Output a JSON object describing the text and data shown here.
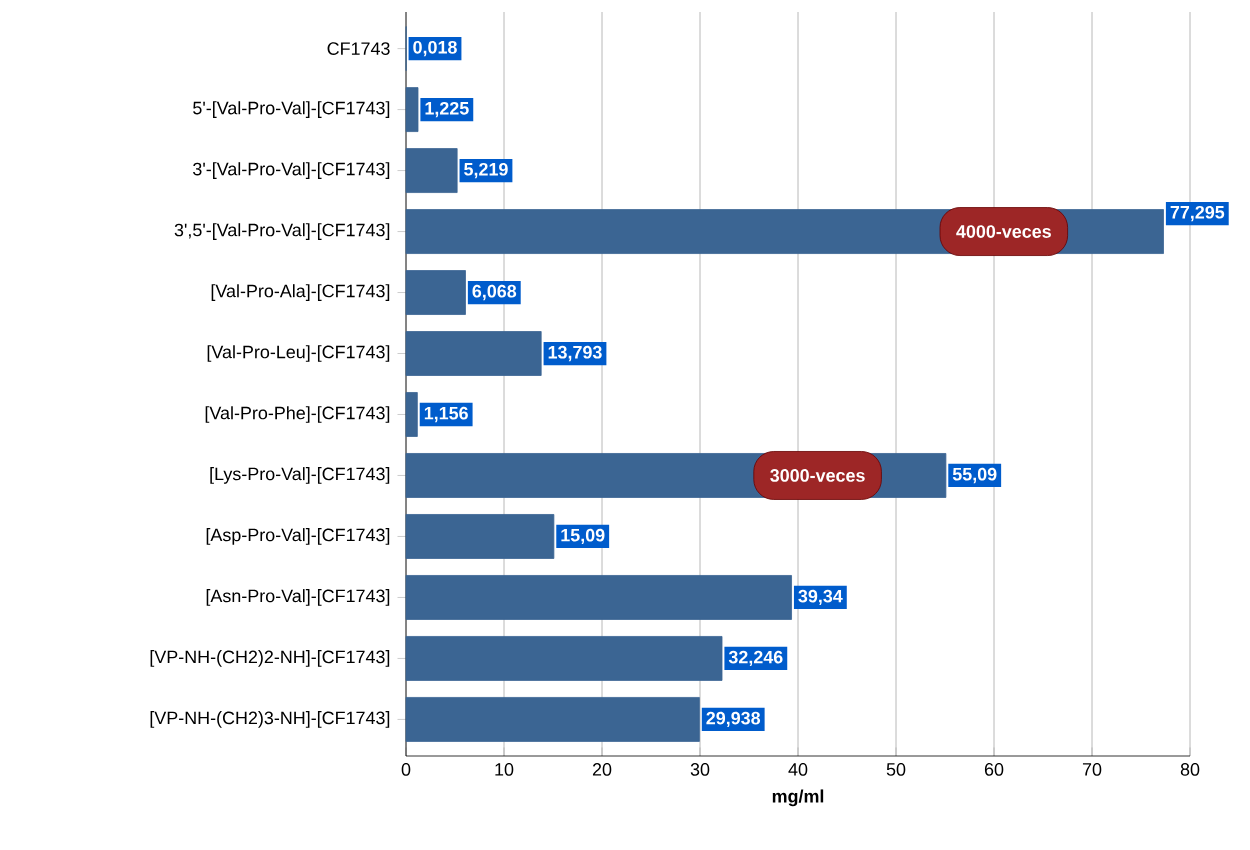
{
  "chart_data": {
    "type": "bar",
    "orientation": "horizontal",
    "xlabel": "mg/ml",
    "categories": [
      "CF1743",
      "5'-[Val-Pro-Val]-[CF1743]",
      "3'-[Val-Pro-Val]-[CF1743]",
      "3',5'-[Val-Pro-Val]-[CF1743]",
      "[Val-Pro-Ala]-[CF1743]",
      "[Val-Pro-Leu]-[CF1743]",
      "[Val-Pro-Phe]-[CF1743]",
      "[Lys-Pro-Val]-[CF1743]",
      "[Asp-Pro-Val]-[CF1743]",
      "[Asn-Pro-Val]-[CF1743]",
      "[VP-NH-(CH2)2-NH]-[CF1743]",
      "[VP-NH-(CH2)3-NH]-[CF1743]"
    ],
    "values": [
      0.018,
      1.225,
      5.219,
      77.295,
      6.068,
      13.793,
      1.156,
      55.09,
      15.09,
      39.34,
      32.246,
      29.938
    ],
    "value_labels": [
      "0,018",
      "1,225",
      "5,219",
      "77,295",
      "6,068",
      "13,793",
      "1,156",
      "55,09",
      "15,09",
      "39,34",
      "32,246",
      "29,938"
    ],
    "color": "#3b6593",
    "xlim": [
      0,
      80
    ],
    "xticks": [
      0,
      10,
      20,
      30,
      40,
      50,
      60,
      70,
      80
    ],
    "grid": "x",
    "annotations": [
      {
        "text": "4000-veces",
        "x": 61,
        "y": "3',5'-[Val-Pro-Val]-[CF1743]"
      },
      {
        "text": "3000-veces",
        "x": 42,
        "y": "[Lys-Pro-Val]-[CF1743]"
      }
    ]
  }
}
